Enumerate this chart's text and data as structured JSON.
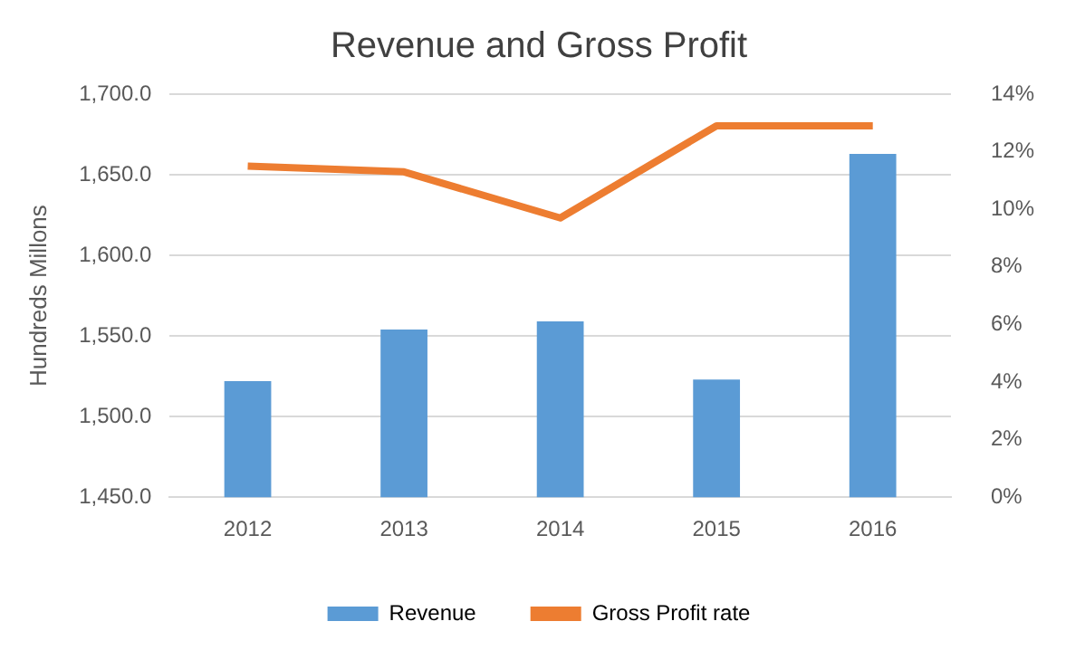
{
  "chart_data": {
    "type": "bar",
    "title": "Revenue and Gross Profit",
    "ylabel": "Hundreds Millons",
    "categories": [
      "2012",
      "2013",
      "2014",
      "2015",
      "2016"
    ],
    "series": [
      {
        "name": "Revenue",
        "color": "#5b9bd5",
        "values": [
          1522,
          1554,
          1559,
          1523,
          1663
        ]
      },
      {
        "name": "Gross Profit rate",
        "type": "line",
        "axis": "y2",
        "color": "#ed7d31",
        "marker": "none",
        "values": [
          11.5,
          11.3,
          9.7,
          12.9,
          12.9
        ]
      }
    ],
    "ylim": [
      1450,
      1700
    ],
    "yticks": [
      {
        "value": 1450,
        "label": "1,450.0"
      },
      {
        "value": 1500,
        "label": "1,500.0"
      },
      {
        "value": 1550,
        "label": "1,550.0"
      },
      {
        "value": 1600,
        "label": "1,600.0"
      },
      {
        "value": 1650,
        "label": "1,650.0"
      },
      {
        "value": 1700,
        "label": "1,700.0"
      }
    ],
    "y2lim": [
      0,
      14
    ],
    "y2ticks": [
      {
        "value": 0,
        "label": "0%"
      },
      {
        "value": 2,
        "label": "2%"
      },
      {
        "value": 4,
        "label": "4%"
      },
      {
        "value": 6,
        "label": "6%"
      },
      {
        "value": 8,
        "label": "8%"
      },
      {
        "value": 10,
        "label": "10%"
      },
      {
        "value": 12,
        "label": "12%"
      },
      {
        "value": 14,
        "label": "14%"
      }
    ],
    "grid": "y",
    "legend": "bottom"
  }
}
